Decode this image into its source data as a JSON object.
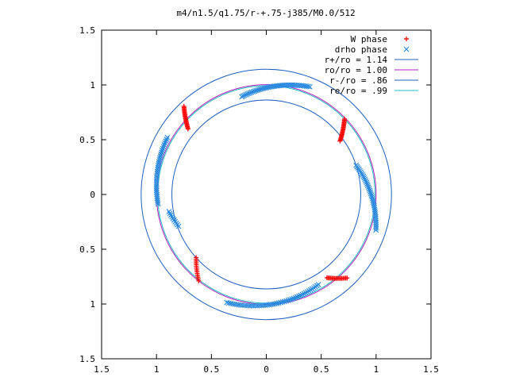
{
  "chart_data": {
    "type": "scatter",
    "title": "m4/n1.5/q1.75/r-+.75-j385/M0.0/512",
    "xlabel": "",
    "ylabel": "",
    "xlim": [
      -1.5,
      1.5
    ],
    "ylim": [
      -1.5,
      1.5
    ],
    "x_tick_values": [
      -1.5,
      -1,
      -0.5,
      0,
      0.5,
      1,
      1.5
    ],
    "x_tick_labels": [
      "1.5",
      "1",
      "0.5",
      "0",
      "0.5",
      "1",
      "1.5"
    ],
    "y_tick_values": [
      1.5,
      1,
      0.5,
      0,
      -0.5,
      -1,
      -1.5
    ],
    "y_tick_labels": [
      "1.5",
      "1",
      "0.5",
      "0",
      "0.5",
      "1",
      "1.5"
    ],
    "grid": false,
    "legend_position": "top-right",
    "circles": [
      {
        "name": "r+/ro = 1.14",
        "r": 1.14,
        "color": "#1f5fbf"
      },
      {
        "name": "ro/ro = 1.00",
        "r": 1.0,
        "color": "#b21fbf"
      },
      {
        "name": "r-/ro = .86",
        "r": 0.86,
        "color": "#1f5fbf"
      },
      {
        "name": "re/ro = .99",
        "r": 0.99,
        "color": "#1fbfbf"
      }
    ],
    "series": [
      {
        "name": "W phase",
        "marker": "plus",
        "color": "#ff0000",
        "arcs": [
          {
            "r_from": 1.1,
            "r_to": 0.93,
            "angle_from": 133,
            "angle_to": 140,
            "points": 20
          },
          {
            "r_from": 0.83,
            "r_to": 0.99,
            "angle_from": 36,
            "angle_to": 44,
            "points": 20
          },
          {
            "r_from": 0.86,
            "r_to": 1.0,
            "angle_from": 222,
            "angle_to": 232,
            "points": 14
          },
          {
            "r_from": 0.94,
            "r_to": 1.06,
            "angle_from": 306,
            "angle_to": 314,
            "points": 16
          }
        ]
      },
      {
        "name": "drho phase",
        "marker": "cross",
        "color": "#2a8ae0",
        "arcs": [
          {
            "r_from": 0.92,
            "r_to": 1.06,
            "angle_from": 104,
            "angle_to": 68,
            "points": 44
          },
          {
            "r_from": 1.04,
            "r_to": 0.99,
            "angle_from": 150,
            "angle_to": 185,
            "points": 36
          },
          {
            "r_from": 0.9,
            "r_to": 0.85,
            "angle_from": 190,
            "angle_to": 200,
            "points": 10
          },
          {
            "r_from": 0.86,
            "r_to": 1.05,
            "angle_from": 18,
            "angle_to": -18,
            "points": 40
          },
          {
            "r_from": 1.05,
            "r_to": 0.95,
            "angle_from": 250,
            "angle_to": 300,
            "points": 50
          }
        ]
      }
    ]
  }
}
